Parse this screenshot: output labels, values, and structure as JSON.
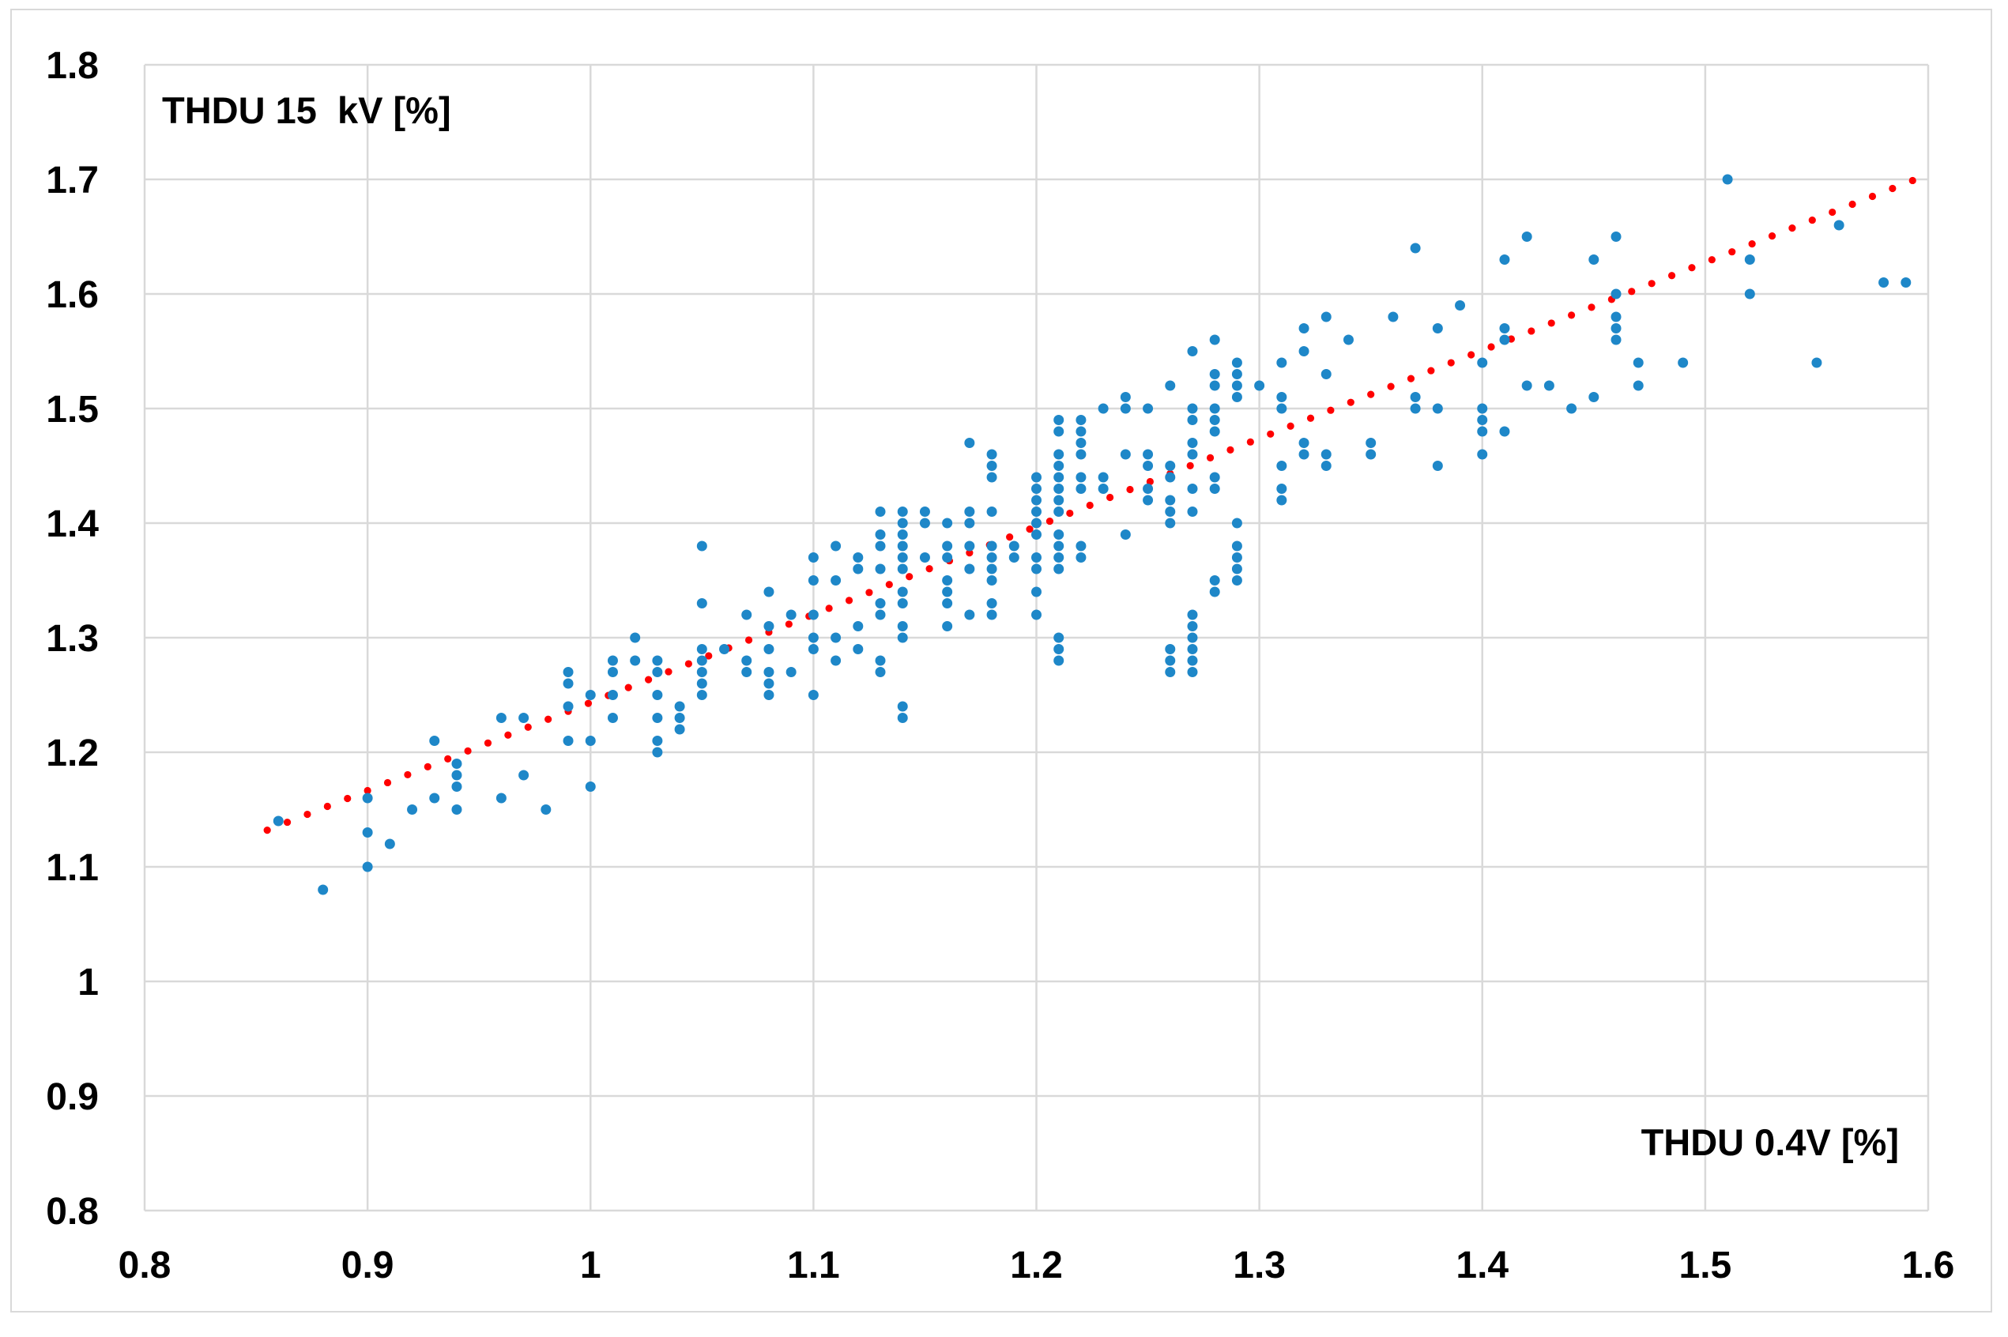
{
  "chart_data": {
    "type": "scatter",
    "inner_labels": {
      "y_axis_title": "THDU 15  kV [%]",
      "x_axis_title": "THDU 0.4V [%]"
    },
    "xlim": [
      0.8,
      1.6
    ],
    "ylim": [
      0.8,
      1.8
    ],
    "x_ticks": [
      "0.8",
      "0.9",
      "1",
      "1.1",
      "1.2",
      "1.3",
      "1.4",
      "1.5",
      "1.6"
    ],
    "y_ticks": [
      "1.8",
      "1.7",
      "1.6",
      "1.5",
      "1.4",
      "1.3",
      "1.2",
      "1.1",
      "1",
      "0.9",
      "0.8"
    ],
    "grid": true,
    "legend": "none",
    "colors": {
      "marker": "#1E87C8",
      "trendline": "#FF0000",
      "gridline": "#D9D9D9",
      "text": "#000000",
      "background": "#FFFFFF"
    },
    "trendline": {
      "style": "dotted",
      "from": [
        0.855,
        1.132
      ],
      "to": [
        1.593,
        1.699
      ]
    },
    "points": [
      [
        0.86,
        1.14
      ],
      [
        0.88,
        1.08
      ],
      [
        0.9,
        1.16
      ],
      [
        0.9,
        1.13
      ],
      [
        0.9,
        1.1
      ],
      [
        0.91,
        1.12
      ],
      [
        0.92,
        1.15
      ],
      [
        0.93,
        1.21
      ],
      [
        0.93,
        1.16
      ],
      [
        0.94,
        1.19
      ],
      [
        0.94,
        1.18
      ],
      [
        0.94,
        1.17
      ],
      [
        0.94,
        1.15
      ],
      [
        0.96,
        1.23
      ],
      [
        0.96,
        1.16
      ],
      [
        0.97,
        1.23
      ],
      [
        0.97,
        1.18
      ],
      [
        0.98,
        1.15
      ],
      [
        0.99,
        1.27
      ],
      [
        0.99,
        1.26
      ],
      [
        0.99,
        1.24
      ],
      [
        0.99,
        1.21
      ],
      [
        1.0,
        1.25
      ],
      [
        1.0,
        1.21
      ],
      [
        1.0,
        1.17
      ],
      [
        1.01,
        1.28
      ],
      [
        1.01,
        1.27
      ],
      [
        1.01,
        1.25
      ],
      [
        1.01,
        1.23
      ],
      [
        1.02,
        1.3
      ],
      [
        1.02,
        1.28
      ],
      [
        1.03,
        1.28
      ],
      [
        1.03,
        1.27
      ],
      [
        1.03,
        1.25
      ],
      [
        1.03,
        1.23
      ],
      [
        1.03,
        1.21
      ],
      [
        1.03,
        1.2
      ],
      [
        1.04,
        1.24
      ],
      [
        1.04,
        1.23
      ],
      [
        1.04,
        1.22
      ],
      [
        1.05,
        1.38
      ],
      [
        1.05,
        1.33
      ],
      [
        1.05,
        1.29
      ],
      [
        1.05,
        1.28
      ],
      [
        1.05,
        1.27
      ],
      [
        1.05,
        1.26
      ],
      [
        1.05,
        1.25
      ],
      [
        1.06,
        1.29
      ],
      [
        1.07,
        1.32
      ],
      [
        1.07,
        1.28
      ],
      [
        1.07,
        1.27
      ],
      [
        1.08,
        1.34
      ],
      [
        1.08,
        1.31
      ],
      [
        1.08,
        1.29
      ],
      [
        1.08,
        1.27
      ],
      [
        1.08,
        1.26
      ],
      [
        1.08,
        1.25
      ],
      [
        1.09,
        1.32
      ],
      [
        1.09,
        1.27
      ],
      [
        1.1,
        1.37
      ],
      [
        1.1,
        1.35
      ],
      [
        1.1,
        1.32
      ],
      [
        1.1,
        1.3
      ],
      [
        1.1,
        1.29
      ],
      [
        1.1,
        1.25
      ],
      [
        1.11,
        1.38
      ],
      [
        1.11,
        1.35
      ],
      [
        1.11,
        1.3
      ],
      [
        1.11,
        1.28
      ],
      [
        1.12,
        1.37
      ],
      [
        1.12,
        1.36
      ],
      [
        1.12,
        1.31
      ],
      [
        1.12,
        1.29
      ],
      [
        1.13,
        1.41
      ],
      [
        1.13,
        1.39
      ],
      [
        1.13,
        1.38
      ],
      [
        1.13,
        1.36
      ],
      [
        1.13,
        1.33
      ],
      [
        1.13,
        1.32
      ],
      [
        1.13,
        1.28
      ],
      [
        1.13,
        1.27
      ],
      [
        1.14,
        1.41
      ],
      [
        1.14,
        1.4
      ],
      [
        1.14,
        1.39
      ],
      [
        1.14,
        1.38
      ],
      [
        1.14,
        1.37
      ],
      [
        1.14,
        1.36
      ],
      [
        1.14,
        1.34
      ],
      [
        1.14,
        1.33
      ],
      [
        1.14,
        1.31
      ],
      [
        1.14,
        1.3
      ],
      [
        1.14,
        1.24
      ],
      [
        1.14,
        1.23
      ],
      [
        1.15,
        1.41
      ],
      [
        1.15,
        1.4
      ],
      [
        1.15,
        1.37
      ],
      [
        1.16,
        1.4
      ],
      [
        1.16,
        1.38
      ],
      [
        1.16,
        1.37
      ],
      [
        1.16,
        1.35
      ],
      [
        1.16,
        1.34
      ],
      [
        1.16,
        1.33
      ],
      [
        1.16,
        1.31
      ],
      [
        1.17,
        1.47
      ],
      [
        1.17,
        1.41
      ],
      [
        1.17,
        1.4
      ],
      [
        1.17,
        1.38
      ],
      [
        1.17,
        1.36
      ],
      [
        1.17,
        1.32
      ],
      [
        1.18,
        1.46
      ],
      [
        1.18,
        1.45
      ],
      [
        1.18,
        1.44
      ],
      [
        1.18,
        1.41
      ],
      [
        1.18,
        1.38
      ],
      [
        1.18,
        1.37
      ],
      [
        1.18,
        1.36
      ],
      [
        1.18,
        1.35
      ],
      [
        1.18,
        1.33
      ],
      [
        1.18,
        1.32
      ],
      [
        1.19,
        1.38
      ],
      [
        1.19,
        1.37
      ],
      [
        1.2,
        1.44
      ],
      [
        1.2,
        1.43
      ],
      [
        1.2,
        1.42
      ],
      [
        1.2,
        1.41
      ],
      [
        1.2,
        1.4
      ],
      [
        1.2,
        1.39
      ],
      [
        1.2,
        1.37
      ],
      [
        1.2,
        1.36
      ],
      [
        1.2,
        1.34
      ],
      [
        1.2,
        1.32
      ],
      [
        1.21,
        1.49
      ],
      [
        1.21,
        1.48
      ],
      [
        1.21,
        1.46
      ],
      [
        1.21,
        1.45
      ],
      [
        1.21,
        1.44
      ],
      [
        1.21,
        1.43
      ],
      [
        1.21,
        1.42
      ],
      [
        1.21,
        1.41
      ],
      [
        1.21,
        1.39
      ],
      [
        1.21,
        1.38
      ],
      [
        1.21,
        1.37
      ],
      [
        1.21,
        1.36
      ],
      [
        1.21,
        1.3
      ],
      [
        1.21,
        1.29
      ],
      [
        1.21,
        1.28
      ],
      [
        1.22,
        1.49
      ],
      [
        1.22,
        1.48
      ],
      [
        1.22,
        1.47
      ],
      [
        1.22,
        1.46
      ],
      [
        1.22,
        1.44
      ],
      [
        1.22,
        1.43
      ],
      [
        1.22,
        1.38
      ],
      [
        1.22,
        1.37
      ],
      [
        1.23,
        1.5
      ],
      [
        1.23,
        1.44
      ],
      [
        1.23,
        1.43
      ],
      [
        1.24,
        1.51
      ],
      [
        1.24,
        1.5
      ],
      [
        1.24,
        1.46
      ],
      [
        1.24,
        1.39
      ],
      [
        1.25,
        1.5
      ],
      [
        1.25,
        1.46
      ],
      [
        1.25,
        1.45
      ],
      [
        1.25,
        1.43
      ],
      [
        1.25,
        1.42
      ],
      [
        1.26,
        1.52
      ],
      [
        1.26,
        1.45
      ],
      [
        1.26,
        1.44
      ],
      [
        1.26,
        1.42
      ],
      [
        1.26,
        1.41
      ],
      [
        1.26,
        1.4
      ],
      [
        1.26,
        1.29
      ],
      [
        1.26,
        1.28
      ],
      [
        1.26,
        1.27
      ],
      [
        1.27,
        1.55
      ],
      [
        1.27,
        1.5
      ],
      [
        1.27,
        1.49
      ],
      [
        1.27,
        1.47
      ],
      [
        1.27,
        1.46
      ],
      [
        1.27,
        1.43
      ],
      [
        1.27,
        1.41
      ],
      [
        1.27,
        1.32
      ],
      [
        1.27,
        1.31
      ],
      [
        1.27,
        1.3
      ],
      [
        1.27,
        1.29
      ],
      [
        1.27,
        1.28
      ],
      [
        1.27,
        1.27
      ],
      [
        1.28,
        1.56
      ],
      [
        1.28,
        1.53
      ],
      [
        1.28,
        1.52
      ],
      [
        1.28,
        1.5
      ],
      [
        1.28,
        1.49
      ],
      [
        1.28,
        1.48
      ],
      [
        1.28,
        1.44
      ],
      [
        1.28,
        1.43
      ],
      [
        1.28,
        1.35
      ],
      [
        1.28,
        1.34
      ],
      [
        1.29,
        1.54
      ],
      [
        1.29,
        1.53
      ],
      [
        1.29,
        1.52
      ],
      [
        1.29,
        1.51
      ],
      [
        1.29,
        1.4
      ],
      [
        1.29,
        1.38
      ],
      [
        1.29,
        1.37
      ],
      [
        1.29,
        1.36
      ],
      [
        1.29,
        1.35
      ],
      [
        1.3,
        1.52
      ],
      [
        1.31,
        1.54
      ],
      [
        1.31,
        1.51
      ],
      [
        1.31,
        1.5
      ],
      [
        1.31,
        1.45
      ],
      [
        1.31,
        1.43
      ],
      [
        1.31,
        1.42
      ],
      [
        1.32,
        1.57
      ],
      [
        1.32,
        1.55
      ],
      [
        1.32,
        1.47
      ],
      [
        1.32,
        1.46
      ],
      [
        1.33,
        1.58
      ],
      [
        1.33,
        1.53
      ],
      [
        1.33,
        1.46
      ],
      [
        1.33,
        1.45
      ],
      [
        1.34,
        1.56
      ],
      [
        1.35,
        1.47
      ],
      [
        1.35,
        1.46
      ],
      [
        1.36,
        1.58
      ],
      [
        1.37,
        1.64
      ],
      [
        1.37,
        1.51
      ],
      [
        1.37,
        1.5
      ],
      [
        1.38,
        1.57
      ],
      [
        1.38,
        1.5
      ],
      [
        1.38,
        1.45
      ],
      [
        1.39,
        1.59
      ],
      [
        1.4,
        1.54
      ],
      [
        1.4,
        1.5
      ],
      [
        1.4,
        1.49
      ],
      [
        1.4,
        1.48
      ],
      [
        1.4,
        1.46
      ],
      [
        1.41,
        1.63
      ],
      [
        1.41,
        1.57
      ],
      [
        1.41,
        1.56
      ],
      [
        1.41,
        1.48
      ],
      [
        1.42,
        1.65
      ],
      [
        1.42,
        1.52
      ],
      [
        1.43,
        1.52
      ],
      [
        1.44,
        1.5
      ],
      [
        1.45,
        1.63
      ],
      [
        1.45,
        1.51
      ],
      [
        1.46,
        1.65
      ],
      [
        1.46,
        1.6
      ],
      [
        1.46,
        1.58
      ],
      [
        1.46,
        1.57
      ],
      [
        1.46,
        1.56
      ],
      [
        1.47,
        1.54
      ],
      [
        1.47,
        1.52
      ],
      [
        1.49,
        1.54
      ],
      [
        1.51,
        1.7
      ],
      [
        1.52,
        1.63
      ],
      [
        1.52,
        1.6
      ],
      [
        1.55,
        1.54
      ],
      [
        1.56,
        1.66
      ],
      [
        1.58,
        1.61
      ],
      [
        1.59,
        1.61
      ]
    ]
  }
}
